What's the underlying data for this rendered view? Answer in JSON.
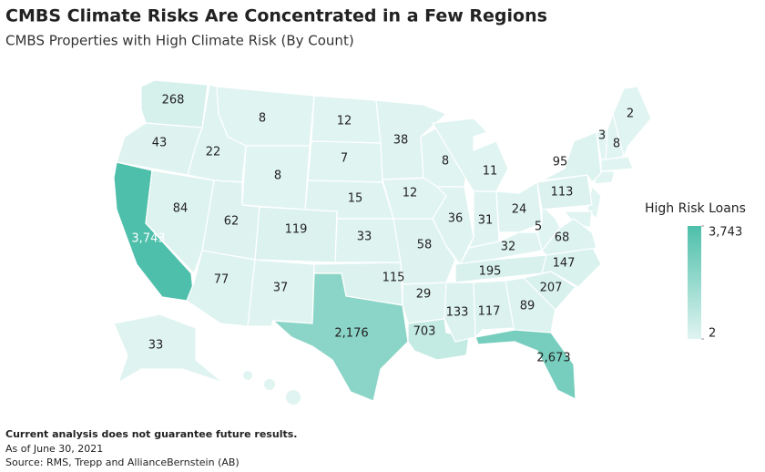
{
  "chart_data": {
    "type": "choropleth",
    "title": "CMBS Climate Risks Are Concentrated in a Few Regions",
    "subtitle": "CMBS Properties with High Climate Risk (By Count)",
    "values": [
      268,
      43,
      3743,
      84,
      22,
      8,
      8,
      62,
      77,
      119,
      37,
      12,
      7,
      15,
      33,
      115,
      2176,
      38,
      12,
      58,
      29,
      703,
      8,
      36,
      11,
      31,
      24,
      32,
      195,
      133,
      117,
      89,
      2673,
      207,
      147,
      68,
      5,
      113,
      95,
      3,
      8,
      2,
      33
    ],
    "value_labels": [
      "268",
      "43",
      "3,743",
      "84",
      "22",
      "8",
      "8",
      "62",
      "77",
      "119",
      "37",
      "12",
      "7",
      "15",
      "33",
      "115",
      "2,176",
      "38",
      "12",
      "58",
      "29",
      "703",
      "8",
      "36",
      "11",
      "31",
      "24",
      "32",
      "195",
      "133",
      "117",
      "89",
      "2,673",
      "207",
      "147",
      "68",
      "5",
      "113",
      "95",
      "3",
      "8",
      "2",
      "33"
    ],
    "color_range": [
      "#e0f4f1",
      "#4dbfaa"
    ],
    "colorbar": {
      "title": "High Risk Loans",
      "lim": [
        2,
        3743
      ],
      "ticks": [
        2,
        {
          "value": 3743,
          "label": "3,743"
        }
      ]
    },
    "notes": [
      "Current analysis does not guarantee future results.",
      "As of June 30, 2021",
      "Source: RMS, Trepp and AllianceBernstein (AB)"
    ]
  }
}
